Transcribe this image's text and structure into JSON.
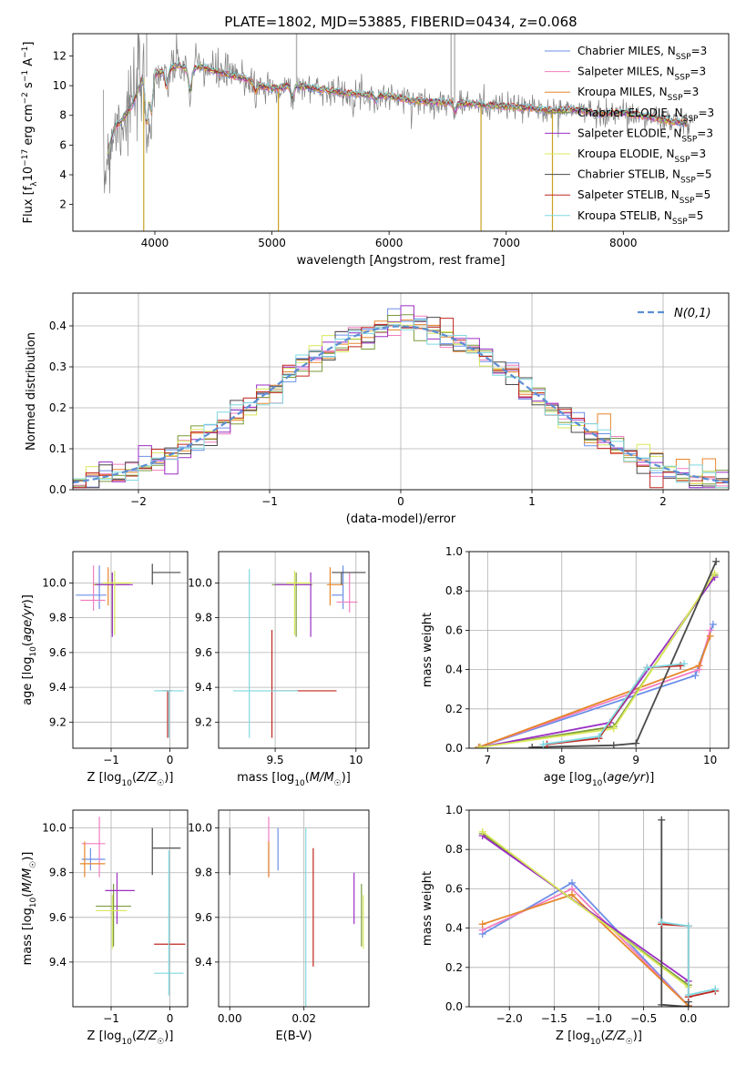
{
  "figure_title": "PLATE=1802, MJD=53885, FIBERID=0434, z=0.068",
  "colors": {
    "Chabrier MILES": "#6b8fe8",
    "Salpeter MILES": "#f07dc0",
    "Kroupa MILES": "#e6862b",
    "Chabrier ELODIE": "#7a9a3a",
    "Salpeter ELODIE": "#9b2fc4",
    "Kroupa ELODIE": "#d9e85a",
    "Chabrier STELIB": "#4a4a4a",
    "Salpeter STELIB": "#c0261f",
    "Kroupa STELIB": "#7fd8e0",
    "data": "#7f7f7f",
    "gauss": "#5b8fd4"
  },
  "chart_data": [
    {
      "id": "spectrum",
      "type": "line",
      "title": "PLATE=1802, MJD=53885, FIBERID=0434, z=0.068",
      "xlabel": "wavelength [Angstrom, rest frame]",
      "ylabel": "Flux [f_λ 10^-17 erg cm^-2 s^-1 A^-1]",
      "xlim": [
        3300,
        8900
      ],
      "ylim": [
        0.2,
        13.5
      ],
      "xticks": [
        4000,
        5000,
        6000,
        7000,
        8000
      ],
      "yticks": [
        2,
        4,
        6,
        8,
        10,
        12
      ],
      "grid": false,
      "legend_position": "top-right",
      "legend": [
        {
          "name": "Chabrier MILES",
          "nssp": "3"
        },
        {
          "name": "Salpeter MILES",
          "nssp": "3"
        },
        {
          "name": "Kroupa MILES",
          "nssp": "3"
        },
        {
          "name": "Chabrier ELODIE",
          "nssp": "3"
        },
        {
          "name": "Salpeter ELODIE",
          "nssp": "3"
        },
        {
          "name": "Kroupa ELODIE",
          "nssp": "3"
        },
        {
          "name": "Chabrier STELIB",
          "nssp": "5"
        },
        {
          "name": "Salpeter STELIB",
          "nssp": "5"
        },
        {
          "name": "Kroupa STELIB",
          "nssp": "5"
        }
      ],
      "continuum": [
        [
          3560,
          3.5
        ],
        [
          3600,
          5.5
        ],
        [
          3650,
          7.2
        ],
        [
          3700,
          7.5
        ],
        [
          3800,
          8.6
        ],
        [
          3900,
          10.5
        ],
        [
          4000,
          10.8
        ],
        [
          4100,
          11.0
        ],
        [
          4200,
          11.4
        ],
        [
          4300,
          11.0
        ],
        [
          4400,
          11.3
        ],
        [
          4500,
          11.0
        ],
        [
          4600,
          10.8
        ],
        [
          4700,
          10.6
        ],
        [
          4800,
          10.4
        ],
        [
          4900,
          10.0
        ],
        [
          5000,
          9.8
        ],
        [
          5200,
          10.0
        ],
        [
          5400,
          9.8
        ],
        [
          5600,
          9.5
        ],
        [
          5800,
          9.4
        ],
        [
          6000,
          9.3
        ],
        [
          6200,
          9.0
        ],
        [
          6400,
          8.9
        ],
        [
          6600,
          8.8
        ],
        [
          6800,
          8.7
        ],
        [
          7000,
          8.6
        ],
        [
          7200,
          8.5
        ],
        [
          7400,
          8.3
        ],
        [
          7600,
          8.4
        ],
        [
          7800,
          8.1
        ],
        [
          8000,
          8.2
        ],
        [
          8200,
          7.9
        ],
        [
          8400,
          7.6
        ],
        [
          8600,
          7.4
        ]
      ],
      "absorption_features": [
        [
          3930,
          6.5
        ],
        [
          3970,
          7.5
        ],
        [
          4100,
          9.6
        ],
        [
          4300,
          9.3
        ],
        [
          4860,
          9.5
        ],
        [
          5175,
          9.0
        ],
        [
          5890,
          8.8
        ],
        [
          6563,
          8.2
        ]
      ],
      "spikes_down": [
        [
          3905,
          0.2
        ],
        [
          5055,
          0.2
        ],
        [
          6785,
          0.2
        ],
        [
          7395,
          0.2
        ]
      ],
      "spikes_up": [
        [
          3930,
          13.5
        ],
        [
          5210,
          13.5
        ],
        [
          6530,
          13.5
        ],
        [
          6560,
          13.5
        ]
      ]
    },
    {
      "id": "residuals",
      "type": "histogram",
      "xlabel": "(data-model)/error",
      "ylabel": "Normed distribution",
      "xlim": [
        -2.5,
        2.5
      ],
      "ylim": [
        0,
        0.48
      ],
      "xticks": [
        -2,
        -1,
        0,
        1,
        2
      ],
      "yticks": [
        0.0,
        0.1,
        0.2,
        0.3,
        0.4
      ],
      "grid": true,
      "legend_position": "top-right",
      "gauss_label": "N(0,1)",
      "bin_width": 0.1,
      "bin_start": -2.5
    },
    {
      "id": "age_vs_Z",
      "type": "errorbar",
      "xlabel": "Z [log10(Z/Z☉)]",
      "ylabel": "age  [log10(age/yr)]",
      "xlim": [
        -1.65,
        0.3
      ],
      "ylim": [
        9.05,
        10.18
      ],
      "xticks": [
        -1,
        0
      ],
      "yticks": [
        9.2,
        9.4,
        9.6,
        9.8,
        10.0
      ],
      "grid": true,
      "points": [
        {
          "model": "Chabrier MILES",
          "x": -1.2,
          "xerr": [
            0.4,
            0.12
          ],
          "y": 9.93,
          "yerr": [
            0.08,
            0.17
          ]
        },
        {
          "model": "Salpeter MILES",
          "x": -1.3,
          "xerr": [
            0.22,
            0.2
          ],
          "y": 9.9,
          "yerr": [
            0.06,
            0.2
          ]
        },
        {
          "model": "Kroupa MILES",
          "x": -1.05,
          "xerr": [
            0.25,
            0.35
          ],
          "y": 9.99,
          "yerr": [
            0.12,
            0.1
          ]
        },
        {
          "model": "Chabrier ELODIE",
          "x": -0.98,
          "xerr": [
            0.3,
            0.3
          ],
          "y": 9.99,
          "yerr": [
            0.28,
            0.07
          ]
        },
        {
          "model": "Salpeter ELODIE",
          "x": -0.98,
          "xerr": [
            0.28,
            0.35
          ],
          "y": 9.99,
          "yerr": [
            0.3,
            0.07
          ]
        },
        {
          "model": "Kroupa ELODIE",
          "x": -0.94,
          "xerr": [
            0.2,
            0.3
          ],
          "y": 10.0,
          "yerr": [
            0.3,
            0.07
          ]
        },
        {
          "model": "Chabrier STELIB",
          "x": -0.3,
          "xerr": [
            0.0,
            0.48
          ],
          "y": 10.06,
          "yerr": [
            0.07,
            0.05
          ]
        },
        {
          "model": "Salpeter STELIB",
          "x": -0.04,
          "xerr": [
            0.1,
            0.08
          ],
          "y": 9.38,
          "yerr": [
            0.27,
            0.0
          ]
        },
        {
          "model": "Kroupa STELIB",
          "x": -0.02,
          "xerr": [
            0.25,
            0.25
          ],
          "y": 9.38,
          "yerr": [
            0.27,
            0.0
          ]
        }
      ]
    },
    {
      "id": "age_vs_mass",
      "type": "errorbar",
      "xlabel": "mass [log10(M/M☉)]",
      "ylabel": "",
      "xlim": [
        9.15,
        10.08
      ],
      "ylim": [
        9.05,
        10.18
      ],
      "xticks": [
        9.5,
        10.0
      ],
      "yticks": [
        9.2,
        9.4,
        9.6,
        9.8,
        10.0
      ],
      "grid": true,
      "points": [
        {
          "model": "Chabrier MILES",
          "x": 9.92,
          "xerr": [
            0.07,
            0.0
          ],
          "y": 9.93,
          "yerr": [
            0.08,
            0.17
          ]
        },
        {
          "model": "Salpeter MILES",
          "x": 9.96,
          "xerr": [
            0.08,
            0.05
          ],
          "y": 9.89,
          "yerr": [
            0.06,
            0.17
          ]
        },
        {
          "model": "Kroupa MILES",
          "x": 9.84,
          "xerr": [
            0.02,
            0.08
          ],
          "y": 9.99,
          "yerr": [
            0.12,
            0.1
          ]
        },
        {
          "model": "Chabrier ELODIE",
          "x": 9.63,
          "xerr": [
            0.15,
            0.1
          ],
          "y": 9.99,
          "yerr": [
            0.3,
            0.07
          ]
        },
        {
          "model": "Salpeter ELODIE",
          "x": 9.72,
          "xerr": [
            0.22,
            0.0
          ],
          "y": 9.99,
          "yerr": [
            0.3,
            0.07
          ]
        },
        {
          "model": "Kroupa ELODIE",
          "x": 9.62,
          "xerr": [
            0.05,
            0.1
          ],
          "y": 10.0,
          "yerr": [
            0.3,
            0.07
          ]
        },
        {
          "model": "Chabrier STELIB",
          "x": 9.91,
          "xerr": [
            0.06,
            0.15
          ],
          "y": 10.06,
          "yerr": [
            0.07,
            0.0
          ]
        },
        {
          "model": "Salpeter STELIB",
          "x": 9.48,
          "xerr": [
            0.0,
            0.4
          ],
          "y": 9.38,
          "yerr": [
            0.27,
            0.35
          ]
        },
        {
          "model": "Kroupa STELIB",
          "x": 9.34,
          "xerr": [
            0.1,
            0.3
          ],
          "y": 9.38,
          "yerr": [
            0.27,
            0.7
          ]
        }
      ]
    },
    {
      "id": "weight_vs_age",
      "type": "line",
      "xlabel": "age  [log10(age/yr)]",
      "ylabel": "mass weight",
      "xlim": [
        6.75,
        10.25
      ],
      "ylim": [
        0,
        1.0
      ],
      "xticks": [
        7,
        8,
        9,
        10
      ],
      "yticks": [
        0.0,
        0.2,
        0.4,
        0.6,
        0.8,
        1.0
      ],
      "grid": true,
      "series": [
        {
          "model": "Chabrier MILES",
          "x": [
            6.88,
            9.8,
            10.04
          ],
          "y": [
            0.005,
            0.37,
            0.63
          ]
        },
        {
          "model": "Salpeter MILES",
          "x": [
            6.88,
            9.85,
            10.0
          ],
          "y": [
            0.005,
            0.4,
            0.6
          ]
        },
        {
          "model": "Kroupa MILES",
          "x": [
            6.88,
            9.85,
            10.0
          ],
          "y": [
            0.005,
            0.42,
            0.57
          ]
        },
        {
          "model": "Chabrier ELODIE",
          "x": [
            6.9,
            8.7,
            10.06
          ],
          "y": [
            0.005,
            0.11,
            0.88
          ]
        },
        {
          "model": "Salpeter ELODIE",
          "x": [
            6.9,
            8.65,
            10.06
          ],
          "y": [
            0.005,
            0.13,
            0.87
          ]
        },
        {
          "model": "Kroupa ELODIE",
          "x": [
            6.9,
            8.7,
            10.06
          ],
          "y": [
            0.005,
            0.1,
            0.89
          ]
        },
        {
          "model": "Chabrier STELIB",
          "x": [
            7.6,
            8.7,
            9.0,
            10.08
          ],
          "y": [
            0.005,
            0.015,
            0.025,
            0.95
          ]
        },
        {
          "model": "Salpeter STELIB",
          "x": [
            7.8,
            8.5,
            9.15,
            9.6
          ],
          "y": [
            0.02,
            0.05,
            0.41,
            0.42
          ]
        },
        {
          "model": "Kroupa STELIB",
          "x": [
            7.75,
            8.5,
            9.15,
            9.65
          ],
          "y": [
            0.02,
            0.06,
            0.41,
            0.43
          ]
        }
      ]
    },
    {
      "id": "mass_vs_Z",
      "type": "errorbar",
      "xlabel": "Z [log10(Z/Z☉)]",
      "ylabel": "mass [log10(M/M☉)]",
      "xlim": [
        -1.65,
        0.3
      ],
      "ylim": [
        9.2,
        10.08
      ],
      "xticks": [
        -1,
        0
      ],
      "yticks": [
        9.4,
        9.6,
        9.8,
        10.0
      ],
      "grid": true,
      "points": [
        {
          "model": "Chabrier MILES",
          "x": -1.35,
          "xerr": [
            0.15,
            0.25
          ],
          "y": 9.86,
          "yerr": [
            0.05,
            0.05
          ]
        },
        {
          "model": "Salpeter MILES",
          "x": -1.2,
          "xerr": [
            0.3,
            0.1
          ],
          "y": 9.93,
          "yerr": [
            0.15,
            0.12
          ]
        },
        {
          "model": "Kroupa MILES",
          "x": -1.45,
          "xerr": [
            0.08,
            0.35
          ],
          "y": 9.84,
          "yerr": [
            0.06,
            0.1
          ]
        },
        {
          "model": "Chabrier ELODIE",
          "x": -0.96,
          "xerr": [
            0.3,
            0.3
          ],
          "y": 9.65,
          "yerr": [
            0.18,
            0.1
          ]
        },
        {
          "model": "Salpeter ELODIE",
          "x": -0.9,
          "xerr": [
            0.2,
            0.3
          ],
          "y": 9.72,
          "yerr": [
            0.15,
            0.08
          ]
        },
        {
          "model": "Kroupa ELODIE",
          "x": -0.98,
          "xerr": [
            0.28,
            0.25
          ],
          "y": 9.63,
          "yerr": [
            0.17,
            0.07
          ]
        },
        {
          "model": "Chabrier STELIB",
          "x": -0.3,
          "xerr": [
            0.0,
            0.48
          ],
          "y": 9.91,
          "yerr": [
            0.12,
            0.09
          ]
        },
        {
          "model": "Salpeter STELIB",
          "x": -0.02,
          "xerr": [
            0.25,
            0.28
          ],
          "y": 9.48,
          "yerr": [
            0.0,
            0.0
          ]
        },
        {
          "model": "Kroupa STELIB",
          "x": -0.02,
          "xerr": [
            0.25,
            0.25
          ],
          "y": 9.35,
          "yerr": [
            0.1,
            0.55
          ]
        }
      ]
    },
    {
      "id": "mass_vs_ebv",
      "type": "errorbar",
      "xlabel": "E(B-V)",
      "ylabel": "",
      "xlim": [
        -0.003,
        0.0375
      ],
      "ylim": [
        9.2,
        10.08
      ],
      "xticks": [
        0.0,
        0.02
      ],
      "xticklabels": [
        "0.00",
        "0.02"
      ],
      "yticks": [
        9.4,
        9.6,
        9.8,
        10.0
      ],
      "grid": true,
      "points": [
        {
          "model": "Chabrier MILES",
          "x": 0.013,
          "y": 9.86,
          "yerr": [
            0.05,
            0.14
          ]
        },
        {
          "model": "Salpeter MILES",
          "x": 0.0105,
          "y": 9.93,
          "yerr": [
            0.15,
            0.12
          ]
        },
        {
          "model": "Kroupa MILES",
          "x": 0.0105,
          "y": 9.84,
          "yerr": [
            0.06,
            0.1
          ]
        },
        {
          "model": "Chabrier ELODIE",
          "x": 0.0355,
          "y": 9.65,
          "yerr": [
            0.18,
            0.1
          ]
        },
        {
          "model": "Salpeter ELODIE",
          "x": 0.0335,
          "y": 9.72,
          "yerr": [
            0.15,
            0.08
          ]
        },
        {
          "model": "Kroupa ELODIE",
          "x": 0.036,
          "y": 9.63,
          "yerr": [
            0.17,
            0.07
          ]
        },
        {
          "model": "Chabrier STELIB",
          "x": 0.0,
          "y": 9.91,
          "yerr": [
            0.12,
            0.09
          ]
        },
        {
          "model": "Salpeter STELIB",
          "x": 0.0225,
          "y": 9.68,
          "yerr": [
            0.3,
            0.23
          ]
        },
        {
          "model": "Kroupa STELIB",
          "x": 0.0205,
          "y": 9.6,
          "yerr": [
            0.4,
            0.4
          ]
        }
      ]
    },
    {
      "id": "weight_vs_Z",
      "type": "line",
      "xlabel": "Z [log10(Z/Z☉)]",
      "ylabel": "mass weight",
      "xlim": [
        -2.45,
        0.45
      ],
      "ylim": [
        0,
        1.0
      ],
      "xticks": [
        -2.0,
        -1.5,
        -1.0,
        -0.5,
        0.0
      ],
      "xticklabels": [
        "−2.0",
        "−1.5",
        "−1.0",
        "−0.5",
        "0.0"
      ],
      "yticks": [
        0.0,
        0.2,
        0.4,
        0.6,
        0.8,
        1.0
      ],
      "grid": true,
      "series": [
        {
          "model": "Chabrier MILES",
          "x": [
            -2.3,
            -1.3,
            0.0
          ],
          "y": [
            0.37,
            0.63,
            0.005
          ]
        },
        {
          "model": "Salpeter MILES",
          "x": [
            -2.3,
            -1.3,
            0.0
          ],
          "y": [
            0.39,
            0.6,
            0.005
          ]
        },
        {
          "model": "Kroupa MILES",
          "x": [
            -2.3,
            -1.3,
            0.0
          ],
          "y": [
            0.42,
            0.57,
            0.005
          ]
        },
        {
          "model": "Chabrier ELODIE",
          "x": [
            -2.3,
            0.0
          ],
          "y": [
            0.88,
            0.11
          ]
        },
        {
          "model": "Salpeter ELODIE",
          "x": [
            -2.3,
            0.0
          ],
          "y": [
            0.87,
            0.13
          ]
        },
        {
          "model": "Kroupa ELODIE",
          "x": [
            -2.3,
            0.0
          ],
          "y": [
            0.89,
            0.1
          ]
        },
        {
          "model": "Chabrier STELIB",
          "x": [
            -0.3,
            -0.3,
            0.0,
            0.0
          ],
          "y": [
            0.95,
            0.01,
            0.0,
            0.025
          ]
        },
        {
          "model": "Salpeter STELIB",
          "x": [
            -0.3,
            0.0,
            0.0,
            0.3
          ],
          "y": [
            0.42,
            0.41,
            0.05,
            0.08
          ]
        },
        {
          "model": "Kroupa STELIB",
          "x": [
            -0.3,
            0.0,
            0.0,
            0.3
          ],
          "y": [
            0.43,
            0.41,
            0.06,
            0.09
          ]
        }
      ]
    }
  ]
}
